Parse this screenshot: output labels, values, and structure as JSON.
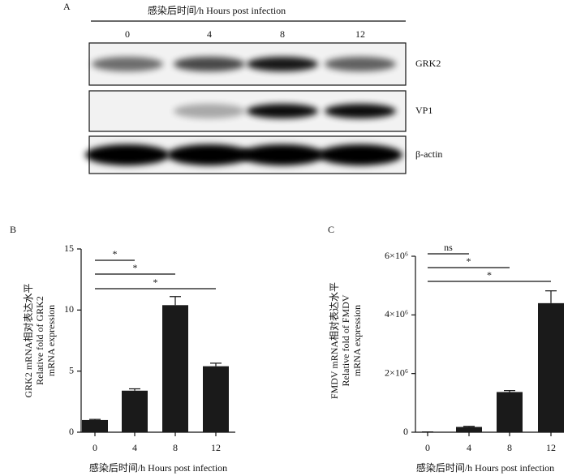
{
  "panel_a": {
    "label": "A",
    "title": "感染后时间/h Hours post infection",
    "lanes": [
      "0",
      "4",
      "8",
      "12"
    ],
    "bands": [
      "GRK2",
      "VP1",
      "β-actin"
    ]
  },
  "chart_data": [
    {
      "type": "bar",
      "label": "B",
      "categories": [
        "0",
        "4",
        "8",
        "12"
      ],
      "values": [
        1.0,
        3.4,
        10.4,
        5.4
      ],
      "errors": [
        0.05,
        0.15,
        0.7,
        0.25
      ],
      "color": "#1a1a1a",
      "ylim": [
        0,
        15
      ],
      "yticks": [
        0,
        5,
        10,
        15
      ],
      "ylabel": [
        "GRK2 mRNA相对表达水平",
        "Relative fold of GRK2",
        "mRNA expression"
      ],
      "xlabel": "感染后时间/h Hours post infection",
      "significance": [
        {
          "text": "*",
          "from": "0",
          "to": "4"
        },
        {
          "text": "*",
          "from": "0",
          "to": "8"
        },
        {
          "text": "*",
          "from": "0",
          "to": "12"
        }
      ]
    },
    {
      "type": "bar",
      "label": "C",
      "categories": [
        "0",
        "4",
        "8",
        "12"
      ],
      "values": [
        10000,
        180000,
        1370000,
        4400000
      ],
      "errors": [
        0,
        20000,
        50000,
        420000
      ],
      "color": "#1a1a1a",
      "ylim": [
        0,
        6000000
      ],
      "yticks": [
        0,
        {
          "value": 2000000,
          "label": "2×10⁶"
        },
        {
          "value": 4000000,
          "label": "4×10⁶"
        },
        {
          "value": 6000000,
          "label": "6×10⁶"
        }
      ],
      "ylabel": [
        "FMDV mRNA相对表达水平",
        "Relative fold of FMDV",
        "mRNA expression"
      ],
      "xlabel": "感染后时间/h Hours post infection",
      "significance": [
        {
          "text": "ns",
          "from": "0",
          "to": "4"
        },
        {
          "text": "*",
          "from": "0",
          "to": "8"
        },
        {
          "text": "*",
          "from": "0",
          "to": "12"
        }
      ]
    }
  ]
}
